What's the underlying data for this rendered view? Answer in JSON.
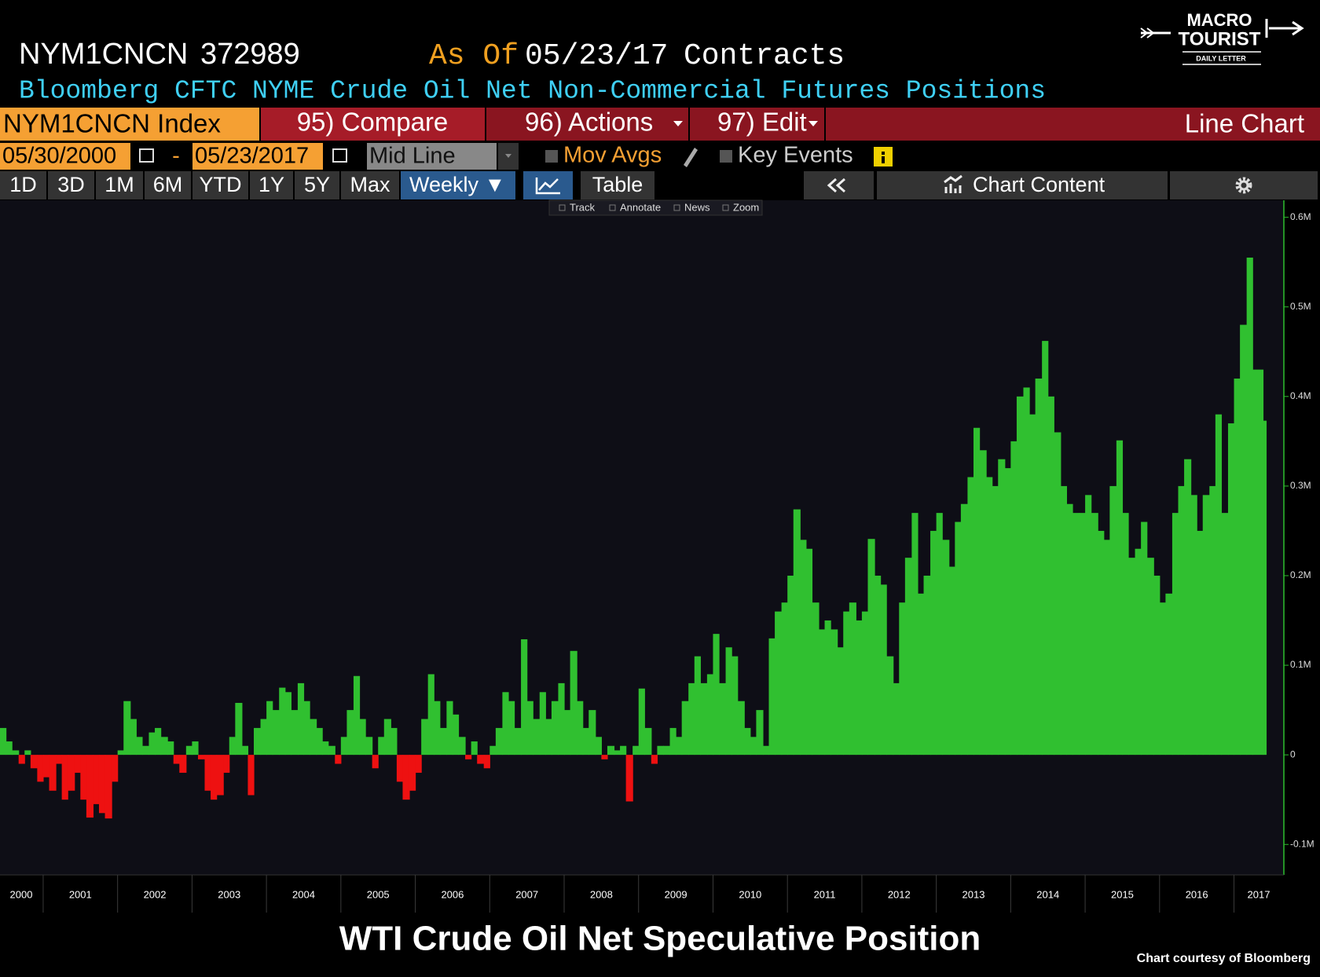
{
  "header": {
    "ticker": "NYM1CNCN",
    "last_value": "372989",
    "as_of_label": "As Of",
    "as_of_date": "05/23/17",
    "units": "Contracts",
    "title": "Bloomberg CFTC NYME Crude Oil Net Non-Commercial Futures Positions"
  },
  "logo": {
    "line1": "MACRO",
    "line2": "TOURIST",
    "line3": "DAILY LETTER"
  },
  "toolbar": {
    "security": "NYM1CNCN Index",
    "compare": "95) Compare",
    "actions": "96) Actions",
    "edit": "97) Edit",
    "chart_type": "Line Chart",
    "start_date": "05/30/2000",
    "date_separator": "-",
    "end_date": "05/23/2017",
    "mid_line": "Mid Line",
    "mov_avgs": "Mov Avgs",
    "key_events": "Key Events",
    "periods": [
      "1D",
      "3D",
      "1M",
      "6M",
      "YTD",
      "1Y",
      "5Y",
      "Max"
    ],
    "frequency": "Weekly ▼",
    "table": "Table",
    "chart_content": "Chart Content",
    "tools": [
      "Track",
      "Annotate",
      "News",
      "Zoom"
    ]
  },
  "chart_data": {
    "type": "area",
    "positive_color": "#30c030",
    "negative_color": "#ee1111",
    "grid": false,
    "xlim": [
      2000.42,
      2017.67
    ],
    "xticks": [
      2000,
      2001,
      2002,
      2003,
      2004,
      2005,
      2006,
      2007,
      2008,
      2009,
      2010,
      2011,
      2012,
      2013,
      2014,
      2015,
      2016,
      2017
    ],
    "ylim": [
      -134000,
      619000
    ],
    "yticks": [
      {
        "value": 600000,
        "label": "0.6M"
      },
      {
        "value": 500000,
        "label": "0.5M"
      },
      {
        "value": 400000,
        "label": "0.4M"
      },
      {
        "value": 300000,
        "label": "0.3M"
      },
      {
        "value": 200000,
        "label": "0.2M"
      },
      {
        "value": 100000,
        "label": "0.1M"
      },
      0,
      {
        "value": -100000,
        "label": "-0.1M"
      }
    ],
    "x": [
      2000.42,
      2000.5,
      2000.58,
      2000.67,
      2000.75,
      2000.83,
      2000.92,
      2001,
      2001.08,
      2001.17,
      2001.25,
      2001.33,
      2001.42,
      2001.5,
      2001.58,
      2001.67,
      2001.75,
      2001.83,
      2001.92,
      2002,
      2002.08,
      2002.17,
      2002.25,
      2002.33,
      2002.42,
      2002.5,
      2002.58,
      2002.67,
      2002.75,
      2002.83,
      2002.92,
      2003,
      2003.08,
      2003.17,
      2003.25,
      2003.33,
      2003.42,
      2003.5,
      2003.58,
      2003.67,
      2003.75,
      2003.83,
      2003.92,
      2004,
      2004.08,
      2004.17,
      2004.25,
      2004.33,
      2004.42,
      2004.5,
      2004.58,
      2004.67,
      2004.75,
      2004.83,
      2004.92,
      2005,
      2005.08,
      2005.17,
      2005.25,
      2005.33,
      2005.42,
      2005.5,
      2005.58,
      2005.67,
      2005.75,
      2005.83,
      2005.92,
      2006,
      2006.08,
      2006.17,
      2006.25,
      2006.33,
      2006.42,
      2006.5,
      2006.58,
      2006.67,
      2006.75,
      2006.83,
      2006.92,
      2007,
      2007.08,
      2007.17,
      2007.25,
      2007.33,
      2007.42,
      2007.5,
      2007.58,
      2007.67,
      2007.75,
      2007.83,
      2007.92,
      2008,
      2008.08,
      2008.17,
      2008.25,
      2008.33,
      2008.42,
      2008.5,
      2008.58,
      2008.67,
      2008.75,
      2008.83,
      2008.92,
      2009,
      2009.08,
      2009.17,
      2009.25,
      2009.33,
      2009.42,
      2009.5,
      2009.58,
      2009.67,
      2009.75,
      2009.83,
      2009.92,
      2010,
      2010.08,
      2010.17,
      2010.25,
      2010.33,
      2010.42,
      2010.5,
      2010.58,
      2010.67,
      2010.75,
      2010.83,
      2010.92,
      2011,
      2011.08,
      2011.17,
      2011.25,
      2011.33,
      2011.42,
      2011.5,
      2011.58,
      2011.67,
      2011.75,
      2011.83,
      2011.92,
      2012,
      2012.08,
      2012.17,
      2012.25,
      2012.33,
      2012.42,
      2012.5,
      2012.58,
      2012.67,
      2012.75,
      2012.83,
      2012.92,
      2013,
      2013.08,
      2013.17,
      2013.25,
      2013.33,
      2013.42,
      2013.5,
      2013.58,
      2013.67,
      2013.75,
      2013.83,
      2013.92,
      2014,
      2014.08,
      2014.17,
      2014.25,
      2014.33,
      2014.42,
      2014.5,
      2014.58,
      2014.67,
      2014.75,
      2014.83,
      2014.92,
      2015,
      2015.08,
      2015.17,
      2015.25,
      2015.33,
      2015.42,
      2015.5,
      2015.58,
      2015.67,
      2015.75,
      2015.83,
      2015.92,
      2016,
      2016.08,
      2016.17,
      2016.25,
      2016.33,
      2016.42,
      2016.5,
      2016.58,
      2016.67,
      2016.75,
      2016.83,
      2016.92,
      2017,
      2017.08,
      2017.17,
      2017.25,
      2017.39
    ],
    "values": [
      30000,
      15000,
      5000,
      -10000,
      5000,
      -15000,
      -30000,
      -25000,
      -40000,
      -10000,
      -50000,
      -40000,
      -20000,
      -50000,
      -70000,
      -55000,
      -65000,
      -71000,
      -30000,
      5000,
      60000,
      40000,
      20000,
      10000,
      25000,
      30000,
      20000,
      15000,
      -10000,
      -20000,
      10000,
      15000,
      -5000,
      -40000,
      -50000,
      -45000,
      -20000,
      20000,
      58000,
      10000,
      -45000,
      30000,
      40000,
      60000,
      50000,
      75000,
      70000,
      50000,
      80000,
      60000,
      40000,
      30000,
      15000,
      10000,
      -10000,
      20000,
      50000,
      88000,
      40000,
      20000,
      -15000,
      20000,
      40000,
      30000,
      -30000,
      -50000,
      -40000,
      -20000,
      40000,
      90000,
      60000,
      30000,
      60000,
      45000,
      20000,
      -5000,
      15000,
      -10000,
      -15000,
      10000,
      30000,
      70000,
      60000,
      30000,
      129000,
      60000,
      40000,
      70000,
      40000,
      60000,
      80000,
      50000,
      116000,
      60000,
      30000,
      50000,
      20000,
      -5000,
      10000,
      5000,
      10000,
      -52000,
      10000,
      74000,
      30000,
      -10000,
      10000,
      10000,
      30000,
      20000,
      60000,
      80000,
      110000,
      80000,
      90000,
      135000,
      80000,
      120000,
      110000,
      60000,
      30000,
      20000,
      50000,
      10000,
      130000,
      160000,
      170000,
      200000,
      274000,
      240000,
      230000,
      170000,
      140000,
      150000,
      140000,
      120000,
      160000,
      170000,
      150000,
      160000,
      241000,
      200000,
      190000,
      110000,
      80000,
      170000,
      220000,
      270000,
      180000,
      200000,
      250000,
      270000,
      240000,
      210000,
      260000,
      280000,
      310000,
      365000,
      340000,
      310000,
      300000,
      330000,
      320000,
      350000,
      400000,
      410000,
      380000,
      420000,
      462000,
      400000,
      360000,
      300000,
      280000,
      270000,
      270000,
      290000,
      270000,
      250000,
      240000,
      300000,
      351000,
      270000,
      220000,
      230000,
      260000,
      220000,
      200000,
      170000,
      180000,
      270000,
      300000,
      330000,
      290000,
      250000,
      290000,
      300000,
      380000,
      270000,
      370000,
      420000,
      480000,
      555000,
      430000,
      372989
    ]
  },
  "caption": {
    "title": "WTI Crude Oil Net Speculative Position",
    "credit": "Chart courtesy of Bloomberg"
  }
}
